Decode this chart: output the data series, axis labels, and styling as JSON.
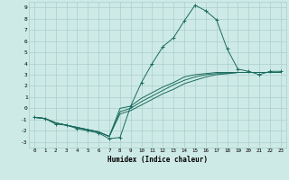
{
  "xlabel": "Humidex (Indice chaleur)",
  "ylabel": "",
  "background_color": "#ceeae6",
  "grid_color": "#aacfcc",
  "line_color": "#1a6b5e",
  "x_data": [
    0,
    1,
    2,
    3,
    4,
    5,
    6,
    7,
    8,
    9,
    10,
    11,
    12,
    13,
    14,
    15,
    16,
    17,
    18,
    19,
    20,
    21,
    22,
    23
  ],
  "series1": [
    -0.8,
    -0.9,
    -1.4,
    -1.5,
    -1.8,
    -2.0,
    -2.2,
    -2.7,
    -2.6,
    0.2,
    2.3,
    4.0,
    5.5,
    6.3,
    7.8,
    9.2,
    8.7,
    7.9,
    5.3,
    3.5,
    3.3,
    3.0,
    3.3,
    3.3
  ],
  "series2": [
    -0.8,
    -0.9,
    -1.3,
    -1.5,
    -1.7,
    -1.9,
    -2.1,
    -2.5,
    -0.5,
    -0.2,
    0.3,
    0.8,
    1.3,
    1.7,
    2.2,
    2.5,
    2.8,
    3.0,
    3.1,
    3.2,
    3.2,
    3.2,
    3.2,
    3.2
  ],
  "series3": [
    -0.8,
    -0.9,
    -1.3,
    -1.5,
    -1.7,
    -1.9,
    -2.1,
    -2.5,
    -0.3,
    0.0,
    0.6,
    1.1,
    1.6,
    2.1,
    2.5,
    2.8,
    3.0,
    3.1,
    3.1,
    3.2,
    3.2,
    3.2,
    3.2,
    3.2
  ],
  "series4": [
    -0.8,
    -0.9,
    -1.3,
    -1.5,
    -1.7,
    -1.9,
    -2.1,
    -2.5,
    0.0,
    0.2,
    0.9,
    1.4,
    1.9,
    2.3,
    2.8,
    3.0,
    3.1,
    3.2,
    3.2,
    3.2,
    3.2,
    3.2,
    3.2,
    3.2
  ],
  "ylim": [
    -3.5,
    9.5
  ],
  "xlim": [
    -0.5,
    23.5
  ],
  "yticks": [
    -3,
    -2,
    -1,
    0,
    1,
    2,
    3,
    4,
    5,
    6,
    7,
    8,
    9
  ],
  "xticks": [
    0,
    1,
    2,
    3,
    4,
    5,
    6,
    7,
    8,
    9,
    10,
    11,
    12,
    13,
    14,
    15,
    16,
    17,
    18,
    19,
    20,
    21,
    22,
    23
  ],
  "marker": "+"
}
